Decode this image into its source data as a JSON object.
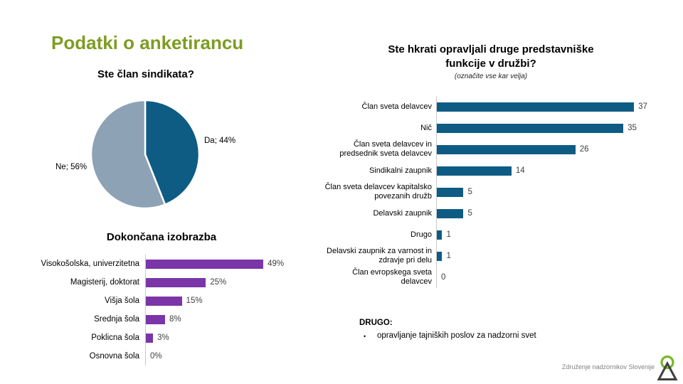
{
  "slide": {
    "title": "Podatki o anketirancu",
    "footer_org": "Združenje nadzornikov Slovenije"
  },
  "colors": {
    "title_green": "#7E9C22",
    "blue": "#0E5C84",
    "gray_blue": "#8EA2B6",
    "purple": "#7A35A8",
    "value_text": "#404040",
    "axis_line": "#C9C9C9",
    "footer_gray": "#808080",
    "logo_green": "#76B82A",
    "logo_dark": "#3F3F3F"
  },
  "drugo": {
    "heading": "DRUGO:",
    "bullet_char": "•",
    "bullet": "opravljanje tajniških poslov za nadzorni svet"
  },
  "chart_data": [
    {
      "type": "pie",
      "title": "Ste član sindikata?",
      "start_angle_deg": 0,
      "direction": "clockwise",
      "legend_position": "none",
      "slices": [
        {
          "label": "Da",
          "value": 44,
          "display": "Da; 44%",
          "color": "#0E5C84"
        },
        {
          "label": "Ne",
          "value": 56,
          "display": "Ne; 56%",
          "color": "#8EA2B6"
        }
      ]
    },
    {
      "type": "bar",
      "orientation": "horizontal",
      "title": "Dokončana izobrazba",
      "categories": [
        "Visokošolska, univerzitetna",
        "Magisterij, doktorat",
        "Višja šola",
        "Srednja šola",
        "Poklicna šola",
        "Osnovna šola"
      ],
      "values": [
        49,
        25,
        15,
        8,
        3,
        0
      ],
      "value_suffix": "%",
      "bar_color": "#7A35A8",
      "xlim": [
        0,
        55
      ],
      "grid": false,
      "legend": false,
      "data_labels": true
    },
    {
      "type": "bar",
      "orientation": "horizontal",
      "title_lines": [
        "Ste hkrati opravljali druge predstavniške",
        "funkcije v družbi?"
      ],
      "title": "Ste hkrati opravljali druge predstavniške funkcije v družbi?",
      "subtitle": "(označite vse kar velja)",
      "categories": [
        "Član sveta delavcev",
        "Nič",
        "Član sveta delavcev in predsednik sveta delavcev",
        "Sindikalni zaupnik",
        "Član sveta delavcev kapitalsko povezanih družb",
        "Delavski zaupnik",
        "Drugo",
        "Delavski zaupnik za varnost in zdravje pri delu",
        "Član evropskega sveta delavcev"
      ],
      "values": [
        37,
        35,
        26,
        14,
        5,
        5,
        1,
        1,
        0
      ],
      "value_suffix": "",
      "bar_color": "#0E5C84",
      "xlim": [
        0,
        40
      ],
      "grid": false,
      "legend": false,
      "data_labels": true
    }
  ]
}
